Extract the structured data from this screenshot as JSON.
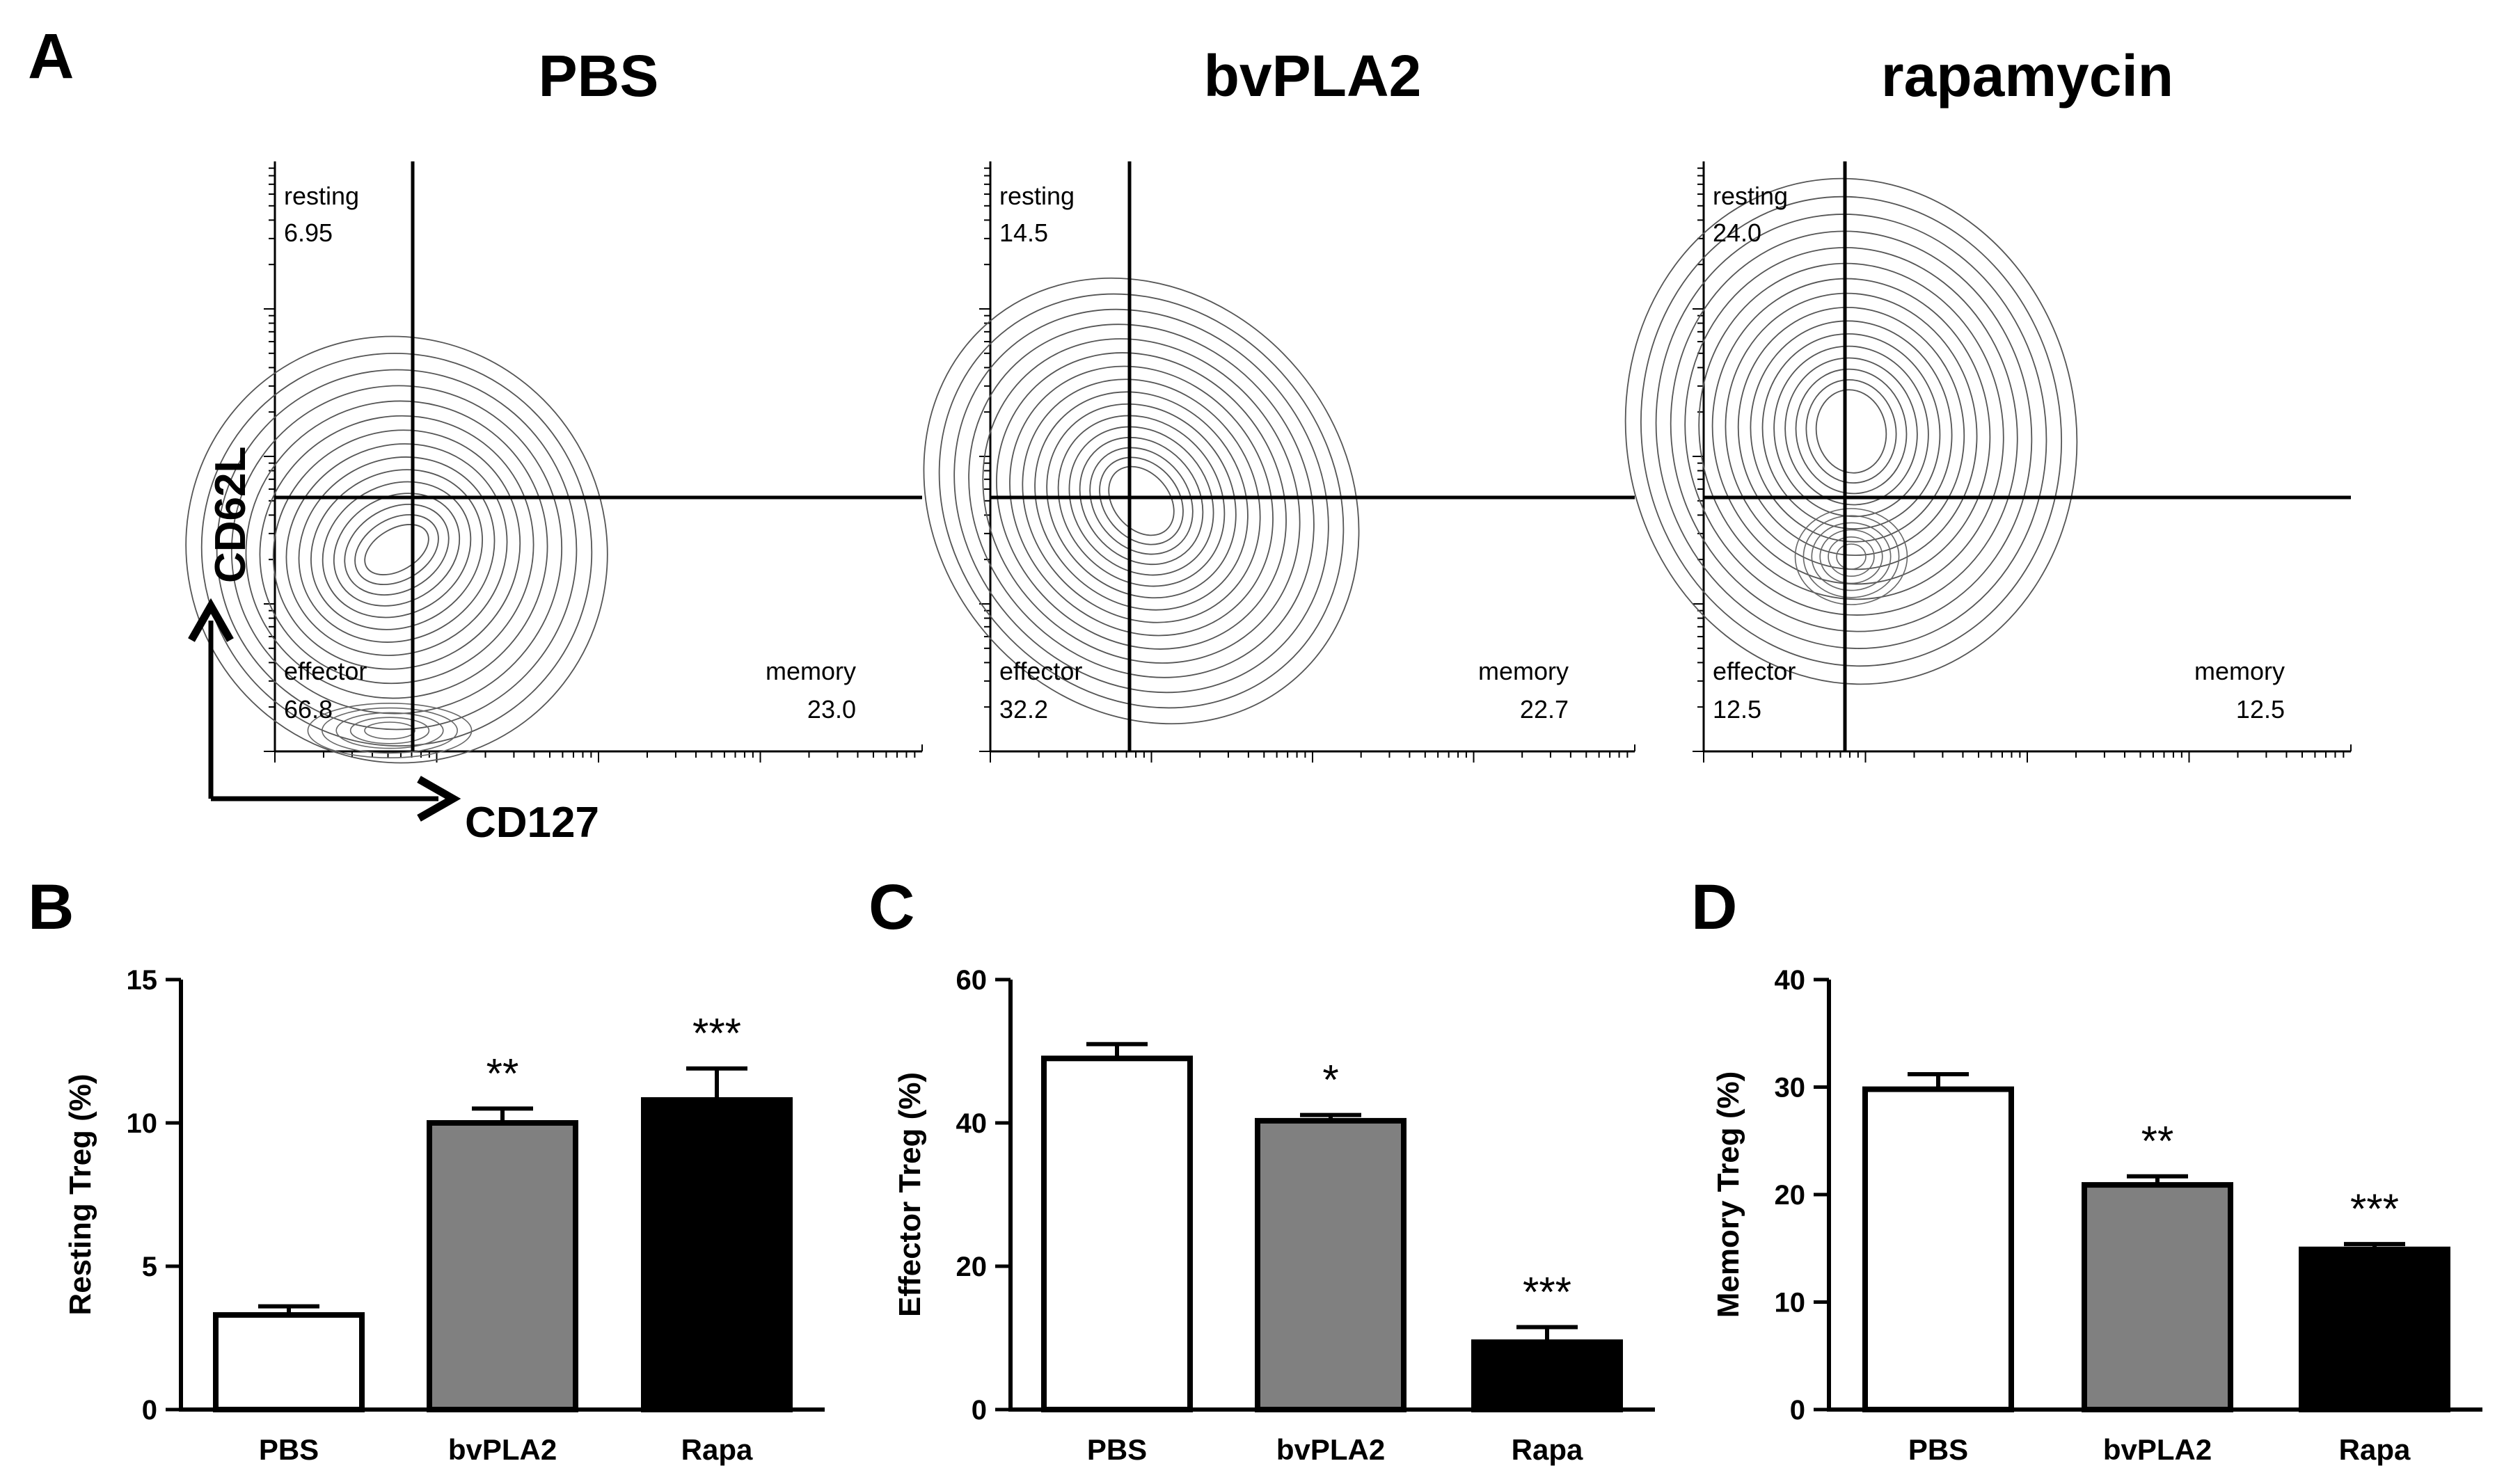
{
  "figure_labels": {
    "a": "A",
    "b": "B",
    "c": "C",
    "d": "D"
  },
  "flow": {
    "x_axis_label": "CD127",
    "y_axis_label": "CD62L",
    "quadrant_labels": {
      "resting": "resting",
      "effector": "effector",
      "memory": "memory"
    },
    "panels": [
      {
        "title": "PBS",
        "resting": "6.95",
        "effector": "66.8",
        "memory": "23.0"
      },
      {
        "title": "bvPLA2",
        "resting": "14.5",
        "effector": "32.2",
        "memory": "22.7"
      },
      {
        "title": "rapamycin",
        "resting": "24.0",
        "effector": "12.5",
        "memory": "12.5"
      }
    ]
  },
  "colors": {
    "PBS": "#ffffff",
    "bvPLA2": "#808080",
    "Rapa": "#000000",
    "ink": "#000000"
  },
  "chart_data": [
    {
      "type": "bar",
      "panel": "B",
      "categories": [
        "PBS",
        "bvPLA2",
        "Rapa"
      ],
      "values": [
        3.3,
        10.0,
        10.8
      ],
      "errors": [
        0.3,
        0.5,
        1.1
      ],
      "significance": [
        "",
        "**",
        "***"
      ],
      "ylabel": "Resting Treg (%)",
      "ylim": [
        0,
        15
      ],
      "yticks": [
        0,
        5,
        10,
        15
      ],
      "ytick_labels": [
        "0",
        "5",
        "10",
        "15"
      ]
    },
    {
      "type": "bar",
      "panel": "C",
      "categories": [
        "PBS",
        "bvPLA2",
        "Rapa"
      ],
      "values": [
        49,
        40.3,
        9.4
      ],
      "errors": [
        2.0,
        0.8,
        2.1
      ],
      "significance": [
        "",
        "*",
        "***"
      ],
      "ylabel": "Effector Treg (%)",
      "ylim": [
        0,
        60
      ],
      "yticks": [
        0,
        20,
        40,
        60
      ],
      "ytick_labels": [
        "0",
        "20",
        "40",
        "60"
      ]
    },
    {
      "type": "bar",
      "panel": "D",
      "categories": [
        "PBS",
        "bvPLA2",
        "Rapa"
      ],
      "values": [
        29.8,
        20.9,
        14.9
      ],
      "errors": [
        1.4,
        0.8,
        0.5
      ],
      "significance": [
        "",
        "**",
        "***"
      ],
      "ylabel": "Memory Treg (%)",
      "ylim": [
        0,
        40
      ],
      "yticks": [
        0,
        10,
        20,
        30,
        40
      ],
      "ytick_labels": [
        "0",
        "10",
        "20",
        "30",
        "40"
      ]
    }
  ]
}
